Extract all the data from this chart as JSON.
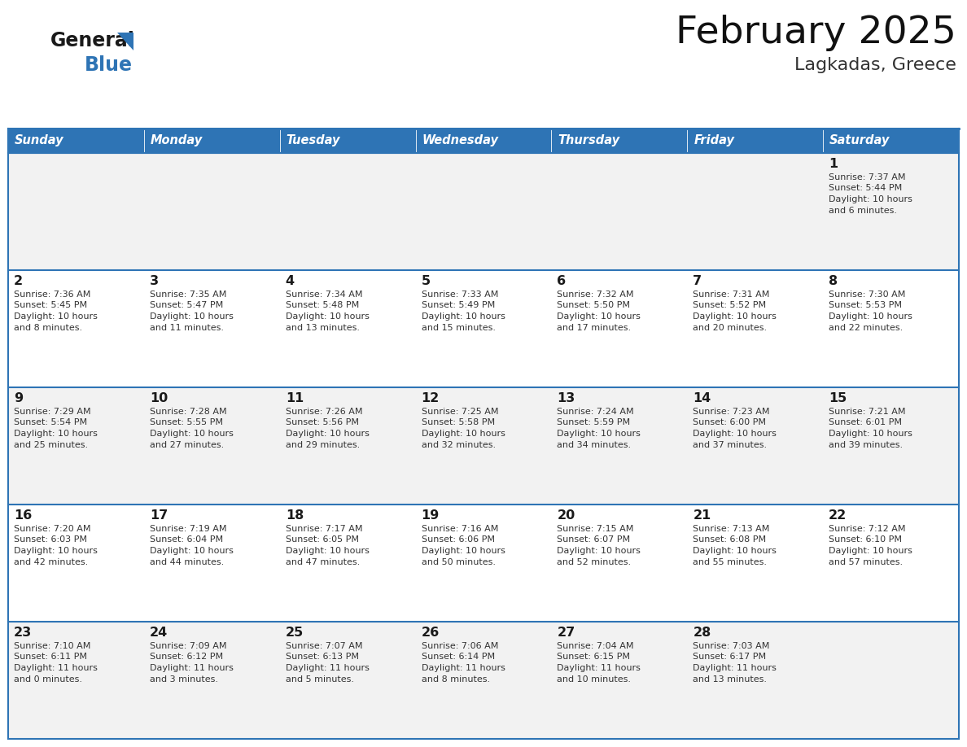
{
  "title": "February 2025",
  "subtitle": "Lagkadas, Greece",
  "header_color": "#2e74b5",
  "header_text_color": "#ffffff",
  "cell_bg_row0": "#f2f2f2",
  "cell_bg_row1": "#ffffff",
  "cell_bg_row2": "#f2f2f2",
  "cell_bg_row3": "#ffffff",
  "cell_bg_row4": "#f2f2f2",
  "border_color": "#2e74b5",
  "day_names": [
    "Sunday",
    "Monday",
    "Tuesday",
    "Wednesday",
    "Thursday",
    "Friday",
    "Saturday"
  ],
  "days": [
    {
      "day": 1,
      "col": 6,
      "row": 0,
      "sunrise": "7:37 AM",
      "sunset": "5:44 PM",
      "daylight_h": "10 hours",
      "daylight_m": "and 6 minutes."
    },
    {
      "day": 2,
      "col": 0,
      "row": 1,
      "sunrise": "7:36 AM",
      "sunset": "5:45 PM",
      "daylight_h": "10 hours",
      "daylight_m": "and 8 minutes."
    },
    {
      "day": 3,
      "col": 1,
      "row": 1,
      "sunrise": "7:35 AM",
      "sunset": "5:47 PM",
      "daylight_h": "10 hours",
      "daylight_m": "and 11 minutes."
    },
    {
      "day": 4,
      "col": 2,
      "row": 1,
      "sunrise": "7:34 AM",
      "sunset": "5:48 PM",
      "daylight_h": "10 hours",
      "daylight_m": "and 13 minutes."
    },
    {
      "day": 5,
      "col": 3,
      "row": 1,
      "sunrise": "7:33 AM",
      "sunset": "5:49 PM",
      "daylight_h": "10 hours",
      "daylight_m": "and 15 minutes."
    },
    {
      "day": 6,
      "col": 4,
      "row": 1,
      "sunrise": "7:32 AM",
      "sunset": "5:50 PM",
      "daylight_h": "10 hours",
      "daylight_m": "and 17 minutes."
    },
    {
      "day": 7,
      "col": 5,
      "row": 1,
      "sunrise": "7:31 AM",
      "sunset": "5:52 PM",
      "daylight_h": "10 hours",
      "daylight_m": "and 20 minutes."
    },
    {
      "day": 8,
      "col": 6,
      "row": 1,
      "sunrise": "7:30 AM",
      "sunset": "5:53 PM",
      "daylight_h": "10 hours",
      "daylight_m": "and 22 minutes."
    },
    {
      "day": 9,
      "col": 0,
      "row": 2,
      "sunrise": "7:29 AM",
      "sunset": "5:54 PM",
      "daylight_h": "10 hours",
      "daylight_m": "and 25 minutes."
    },
    {
      "day": 10,
      "col": 1,
      "row": 2,
      "sunrise": "7:28 AM",
      "sunset": "5:55 PM",
      "daylight_h": "10 hours",
      "daylight_m": "and 27 minutes."
    },
    {
      "day": 11,
      "col": 2,
      "row": 2,
      "sunrise": "7:26 AM",
      "sunset": "5:56 PM",
      "daylight_h": "10 hours",
      "daylight_m": "and 29 minutes."
    },
    {
      "day": 12,
      "col": 3,
      "row": 2,
      "sunrise": "7:25 AM",
      "sunset": "5:58 PM",
      "daylight_h": "10 hours",
      "daylight_m": "and 32 minutes."
    },
    {
      "day": 13,
      "col": 4,
      "row": 2,
      "sunrise": "7:24 AM",
      "sunset": "5:59 PM",
      "daylight_h": "10 hours",
      "daylight_m": "and 34 minutes."
    },
    {
      "day": 14,
      "col": 5,
      "row": 2,
      "sunrise": "7:23 AM",
      "sunset": "6:00 PM",
      "daylight_h": "10 hours",
      "daylight_m": "and 37 minutes."
    },
    {
      "day": 15,
      "col": 6,
      "row": 2,
      "sunrise": "7:21 AM",
      "sunset": "6:01 PM",
      "daylight_h": "10 hours",
      "daylight_m": "and 39 minutes."
    },
    {
      "day": 16,
      "col": 0,
      "row": 3,
      "sunrise": "7:20 AM",
      "sunset": "6:03 PM",
      "daylight_h": "10 hours",
      "daylight_m": "and 42 minutes."
    },
    {
      "day": 17,
      "col": 1,
      "row": 3,
      "sunrise": "7:19 AM",
      "sunset": "6:04 PM",
      "daylight_h": "10 hours",
      "daylight_m": "and 44 minutes."
    },
    {
      "day": 18,
      "col": 2,
      "row": 3,
      "sunrise": "7:17 AM",
      "sunset": "6:05 PM",
      "daylight_h": "10 hours",
      "daylight_m": "and 47 minutes."
    },
    {
      "day": 19,
      "col": 3,
      "row": 3,
      "sunrise": "7:16 AM",
      "sunset": "6:06 PM",
      "daylight_h": "10 hours",
      "daylight_m": "and 50 minutes."
    },
    {
      "day": 20,
      "col": 4,
      "row": 3,
      "sunrise": "7:15 AM",
      "sunset": "6:07 PM",
      "daylight_h": "10 hours",
      "daylight_m": "and 52 minutes."
    },
    {
      "day": 21,
      "col": 5,
      "row": 3,
      "sunrise": "7:13 AM",
      "sunset": "6:08 PM",
      "daylight_h": "10 hours",
      "daylight_m": "and 55 minutes."
    },
    {
      "day": 22,
      "col": 6,
      "row": 3,
      "sunrise": "7:12 AM",
      "sunset": "6:10 PM",
      "daylight_h": "10 hours",
      "daylight_m": "and 57 minutes."
    },
    {
      "day": 23,
      "col": 0,
      "row": 4,
      "sunrise": "7:10 AM",
      "sunset": "6:11 PM",
      "daylight_h": "11 hours",
      "daylight_m": "and 0 minutes."
    },
    {
      "day": 24,
      "col": 1,
      "row": 4,
      "sunrise": "7:09 AM",
      "sunset": "6:12 PM",
      "daylight_h": "11 hours",
      "daylight_m": "and 3 minutes."
    },
    {
      "day": 25,
      "col": 2,
      "row": 4,
      "sunrise": "7:07 AM",
      "sunset": "6:13 PM",
      "daylight_h": "11 hours",
      "daylight_m": "and 5 minutes."
    },
    {
      "day": 26,
      "col": 3,
      "row": 4,
      "sunrise": "7:06 AM",
      "sunset": "6:14 PM",
      "daylight_h": "11 hours",
      "daylight_m": "and 8 minutes."
    },
    {
      "day": 27,
      "col": 4,
      "row": 4,
      "sunrise": "7:04 AM",
      "sunset": "6:15 PM",
      "daylight_h": "11 hours",
      "daylight_m": "and 10 minutes."
    },
    {
      "day": 28,
      "col": 5,
      "row": 4,
      "sunrise": "7:03 AM",
      "sunset": "6:17 PM",
      "daylight_h": "11 hours",
      "daylight_m": "and 13 minutes."
    }
  ],
  "num_rows": 5,
  "num_cols": 7,
  "fig_width": 11.88,
  "fig_height": 9.18,
  "dpi": 100
}
